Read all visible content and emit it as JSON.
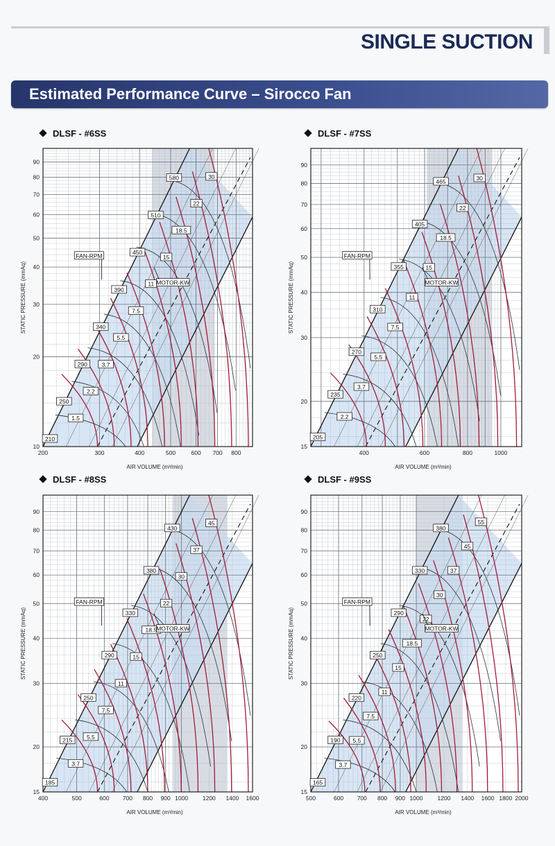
{
  "header": {
    "title": "SINGLE SUCTION"
  },
  "banner": {
    "title": "Estimated Performance Curve – Sirocco Fan"
  },
  "chart_data": [
    {
      "type": "line",
      "title": "DLSF - #6SS",
      "xlabel": "AIR VOLUME (m³/min)",
      "ylabel": "STATIC PRESSURE (mmAq)",
      "xscale": "log",
      "yscale": "log",
      "xlim": [
        200,
        900
      ],
      "ylim": [
        10,
        100
      ],
      "xticks": [
        200,
        300,
        400,
        500,
        600,
        700,
        800
      ],
      "yticks": [
        10,
        20,
        30,
        40,
        50,
        60,
        70,
        80,
        90
      ],
      "rpm_labels": [
        "210",
        "250",
        "290",
        "340",
        "390",
        "450",
        "510",
        "580"
      ],
      "kw_labels": [
        "1.5",
        "2.2",
        "3.7",
        "5.5",
        "7.5",
        "11",
        "15",
        "18.5",
        "22",
        "30"
      ],
      "annotations": [
        "FAN-RPM",
        "MOTOR-KW"
      ]
    },
    {
      "type": "line",
      "title": "DLSF - #7SS",
      "xlabel": "AIR VOLUME (m³/min)",
      "ylabel": "STATIC PRESSURE (mmAq)",
      "xscale": "log",
      "yscale": "log",
      "xlim": [
        280,
        1150
      ],
      "ylim": [
        15,
        100
      ],
      "xticks": [
        400,
        600,
        800,
        1000
      ],
      "yticks": [
        15,
        20,
        30,
        40,
        50,
        60,
        70,
        80,
        90
      ],
      "rpm_labels": [
        "205",
        "235",
        "270",
        "310",
        "355",
        "405",
        "465"
      ],
      "kw_labels": [
        "2.2",
        "3.7",
        "5.5",
        "7.5",
        "11",
        "15",
        "18.5",
        "22",
        "30"
      ],
      "annotations": [
        "FAN-RPM",
        "MOTOR-KW"
      ]
    },
    {
      "type": "line",
      "title": "DLSF - #8SS",
      "xlabel": "AIR VOLUME (m³/min)",
      "ylabel": "STATIC PRESSURE (mmAq)",
      "xscale": "log",
      "yscale": "log",
      "xlim": [
        400,
        1600
      ],
      "ylim": [
        15,
        100
      ],
      "xticks": [
        400,
        500,
        600,
        700,
        800,
        900,
        1000,
        1200,
        1400,
        1600
      ],
      "yticks": [
        15,
        20,
        30,
        40,
        50,
        60,
        70,
        80,
        90
      ],
      "rpm_labels": [
        "185",
        "215",
        "250",
        "290",
        "330",
        "380",
        "430"
      ],
      "kw_labels": [
        "3.7",
        "5.5",
        "7.5",
        "11",
        "15",
        "18.5",
        "22",
        "30",
        "37",
        "45"
      ],
      "annotations": [
        "FAN-RPM",
        "MOTOR-KW"
      ]
    },
    {
      "type": "line",
      "title": "DLSF - #9SS",
      "xlabel": "AIR VOLUME (m³/min)",
      "ylabel": "STATIC PRESSURE (mmAq)",
      "xscale": "log",
      "yscale": "log",
      "xlim": [
        500,
        2000
      ],
      "ylim": [
        15,
        100
      ],
      "xticks": [
        500,
        600,
        700,
        800,
        900,
        1000,
        1200,
        1400,
        1600,
        1800,
        2000
      ],
      "yticks": [
        15,
        20,
        30,
        40,
        50,
        60,
        70,
        80,
        90
      ],
      "rpm_labels": [
        "165",
        "190",
        "220",
        "250",
        "290",
        "330",
        "380"
      ],
      "kw_labels": [
        "3.7",
        "5.5",
        "7.5",
        "11",
        "15",
        "18.5",
        "22",
        "30",
        "37",
        "45",
        "55"
      ],
      "annotations": [
        "FAN-RPM",
        "MOTOR-KW"
      ]
    }
  ]
}
